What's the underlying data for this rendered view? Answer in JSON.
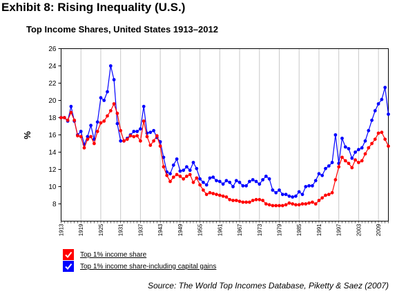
{
  "header": {
    "exhibit_title": "Exhibit 8: Rising Inequality (U.S.)",
    "chart_title": "Top Income Shares, United States 1913–2012"
  },
  "legend": {
    "items": [
      {
        "label": "Top 1% income share",
        "color": "#ff0000"
      },
      {
        "label": "Top 1% income share-including capital gains",
        "color": "#0000ff"
      }
    ]
  },
  "source": "Source: The World Top Incomes Database, Piketty & Saez (2007)",
  "chart_data": {
    "type": "line",
    "title": "Top Income Shares, United States 1913–2012",
    "xlabel": "",
    "ylabel": "%",
    "xlim": [
      1913,
      2012
    ],
    "ylim": [
      6,
      26
    ],
    "yticks": [
      8,
      10,
      12,
      14,
      16,
      18,
      20,
      22,
      24,
      26
    ],
    "xticks": [
      1913,
      1919,
      1925,
      1931,
      1937,
      1943,
      1949,
      1955,
      1961,
      1967,
      1973,
      1979,
      1985,
      1991,
      1997,
      2003,
      2009
    ],
    "grid": "vertical",
    "legend_position": "bottom-left",
    "x_start": 1913,
    "series": [
      {
        "name": "Top 1% income share",
        "color": "#ff0000",
        "values": [
          18.0,
          18.0,
          17.7,
          18.6,
          17.7,
          15.9,
          15.8,
          14.5,
          15.5,
          15.8,
          15.0,
          16.4,
          17.4,
          17.6,
          18.2,
          18.8,
          19.6,
          18.5,
          16.5,
          15.3,
          15.5,
          15.9,
          15.8,
          15.9,
          15.3,
          17.6,
          15.8,
          14.8,
          15.3,
          15.9,
          14.7,
          12.3,
          11.3,
          10.6,
          11.1,
          11.4,
          11.2,
          10.9,
          11.2,
          11.4,
          10.5,
          11.0,
          10.2,
          9.6,
          9.1,
          9.3,
          9.2,
          9.1,
          9.0,
          8.9,
          8.8,
          8.5,
          8.4,
          8.4,
          8.3,
          8.2,
          8.2,
          8.2,
          8.4,
          8.5,
          8.5,
          8.4,
          8.0,
          7.9,
          7.8,
          7.8,
          7.8,
          7.8,
          7.9,
          8.1,
          8.0,
          7.9,
          7.9,
          8.0,
          8.0,
          8.1,
          8.2,
          8.0,
          8.4,
          8.7,
          9.0,
          9.1,
          9.3,
          10.8,
          12.3,
          13.4,
          13.0,
          12.7,
          12.2,
          13.1,
          12.8,
          13.0,
          13.8,
          14.5,
          15.0,
          15.5,
          16.2,
          16.3,
          15.5,
          14.7
        ]
      },
      {
        "name": "Top 1% income share-including capital gains",
        "color": "#0000ff",
        "values": [
          18.0,
          18.0,
          17.6,
          19.3,
          17.6,
          16.0,
          16.4,
          14.9,
          15.8,
          17.1,
          15.5,
          17.5,
          20.3,
          20.0,
          21.0,
          24.0,
          22.4,
          17.3,
          15.3,
          15.3,
          15.6,
          16.0,
          16.4,
          16.4,
          16.7,
          19.3,
          16.2,
          16.3,
          16.5,
          15.7,
          15.2,
          13.4,
          11.7,
          11.5,
          12.5,
          13.2,
          11.8,
          11.9,
          12.3,
          11.9,
          12.8,
          12.1,
          10.9,
          10.5,
          10.2,
          11.0,
          11.1,
          10.7,
          10.6,
          10.3,
          10.7,
          10.5,
          10.0,
          10.7,
          10.5,
          10.1,
          10.1,
          10.6,
          10.8,
          10.6,
          10.3,
          10.8,
          11.2,
          10.9,
          9.6,
          9.3,
          9.6,
          9.1,
          9.1,
          8.9,
          8.8,
          8.9,
          9.4,
          9.1,
          10.0,
          10.1,
          10.1,
          10.7,
          11.5,
          11.3,
          12.1,
          12.4,
          12.8,
          16.0,
          12.7,
          15.6,
          14.6,
          14.4,
          13.3,
          14.0,
          14.3,
          14.5,
          15.3,
          16.5,
          17.7,
          18.8,
          19.6,
          20.1,
          21.5,
          18.4
        ]
      }
    ]
  }
}
